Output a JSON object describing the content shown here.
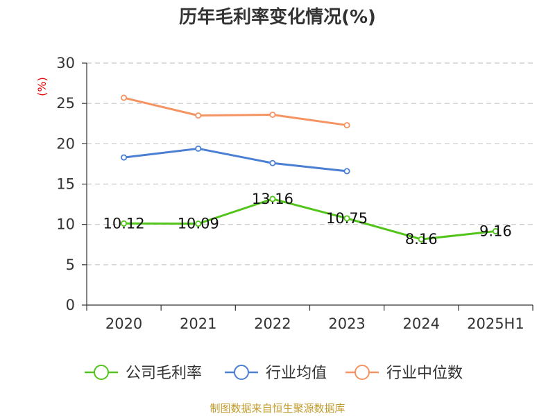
{
  "chart_data": {
    "type": "line",
    "title": "历年毛利率变化情况(%)",
    "ylabel": "(%)",
    "categories": [
      "2020",
      "2021",
      "2022",
      "2023",
      "2024",
      "2025H1"
    ],
    "ylim": [
      0,
      30
    ],
    "yticks": [
      "0",
      "5",
      "10",
      "15",
      "20",
      "25",
      "30"
    ],
    "grid": true,
    "legend_position": "bottom",
    "series": [
      {
        "name": "公司毛利率",
        "color": "#52c41a",
        "values": [
          10.12,
          10.09,
          13.16,
          10.75,
          8.16,
          9.16
        ],
        "labels": [
          "10.12",
          "10.09",
          "13.16",
          "10.75",
          "8.16",
          "9.16"
        ]
      },
      {
        "name": "行业均值",
        "color": "#4a7fd4",
        "values": [
          18.3,
          19.4,
          17.6,
          16.6,
          null,
          null
        ]
      },
      {
        "name": "行业中位数",
        "color": "#f59462",
        "values": [
          25.7,
          23.5,
          23.6,
          22.3,
          null,
          null
        ]
      }
    ]
  },
  "source": "制图数据来自恒生聚源数据库"
}
